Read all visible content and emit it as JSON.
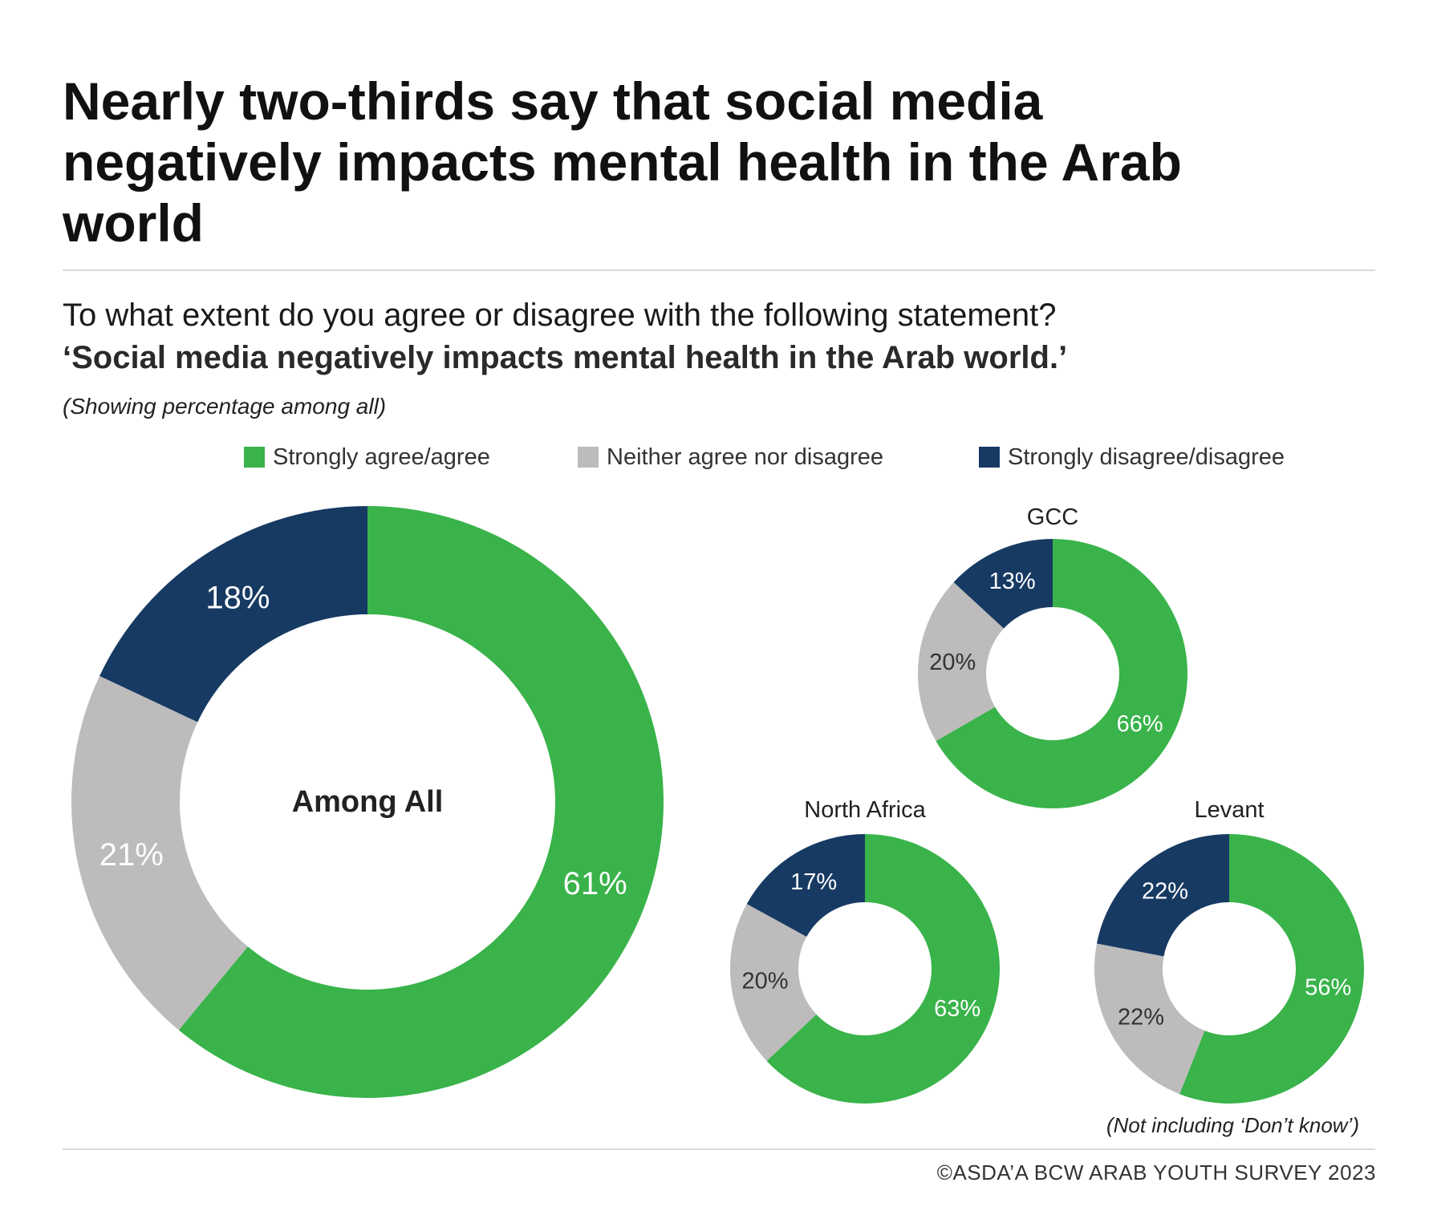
{
  "title": "Nearly two-thirds say that social media negatively impacts mental health in the Arab world",
  "question": "To what extent do you agree or disagree with the following statement?",
  "statement": "‘Social media negatively impacts mental health in the Arab world.’",
  "base_note": "(Showing percentage among all)",
  "exclusion_note": "(Not including ‘Don’t know’)",
  "source": "©ASDA’A BCW ARAB YOUTH SURVEY 2023",
  "legend": [
    {
      "label": "Strongly agree/agree",
      "color": "#39b34a"
    },
    {
      "label": "Neither agree nor disagree",
      "color": "#bdbbbc"
    },
    {
      "label": "Strongly disagree/disagree",
      "color": "#173a63"
    }
  ],
  "chart_data": [
    {
      "type": "pie",
      "variant": "donut",
      "title": "Among All",
      "categories": [
        "Strongly agree/agree",
        "Neither agree nor disagree",
        "Strongly disagree/disagree"
      ],
      "values": [
        61,
        21,
        18
      ],
      "value_labels": [
        "61%",
        "21%",
        "18%"
      ],
      "colors": [
        "#39b34a",
        "#bdbbbc",
        "#173a63"
      ]
    },
    {
      "type": "pie",
      "variant": "donut",
      "title": "GCC",
      "categories": [
        "Strongly agree/agree",
        "Neither agree nor disagree",
        "Strongly disagree/disagree"
      ],
      "values": [
        66,
        20,
        13
      ],
      "value_labels": [
        "66%",
        "20%",
        "13%"
      ],
      "colors": [
        "#39b34a",
        "#bdbbbc",
        "#173a63"
      ]
    },
    {
      "type": "pie",
      "variant": "donut",
      "title": "North Africa",
      "categories": [
        "Strongly agree/agree",
        "Neither agree nor disagree",
        "Strongly disagree/disagree"
      ],
      "values": [
        63,
        20,
        17
      ],
      "value_labels": [
        "63%",
        "20%",
        "17%"
      ],
      "colors": [
        "#39b34a",
        "#bdbbbc",
        "#173a63"
      ]
    },
    {
      "type": "pie",
      "variant": "donut",
      "title": "Levant",
      "categories": [
        "Strongly agree/agree",
        "Neither agree nor disagree",
        "Strongly disagree/disagree"
      ],
      "values": [
        56,
        22,
        22
      ],
      "value_labels": [
        "56%",
        "22%",
        "22%"
      ],
      "colors": [
        "#39b34a",
        "#bdbbbc",
        "#173a63"
      ]
    }
  ]
}
